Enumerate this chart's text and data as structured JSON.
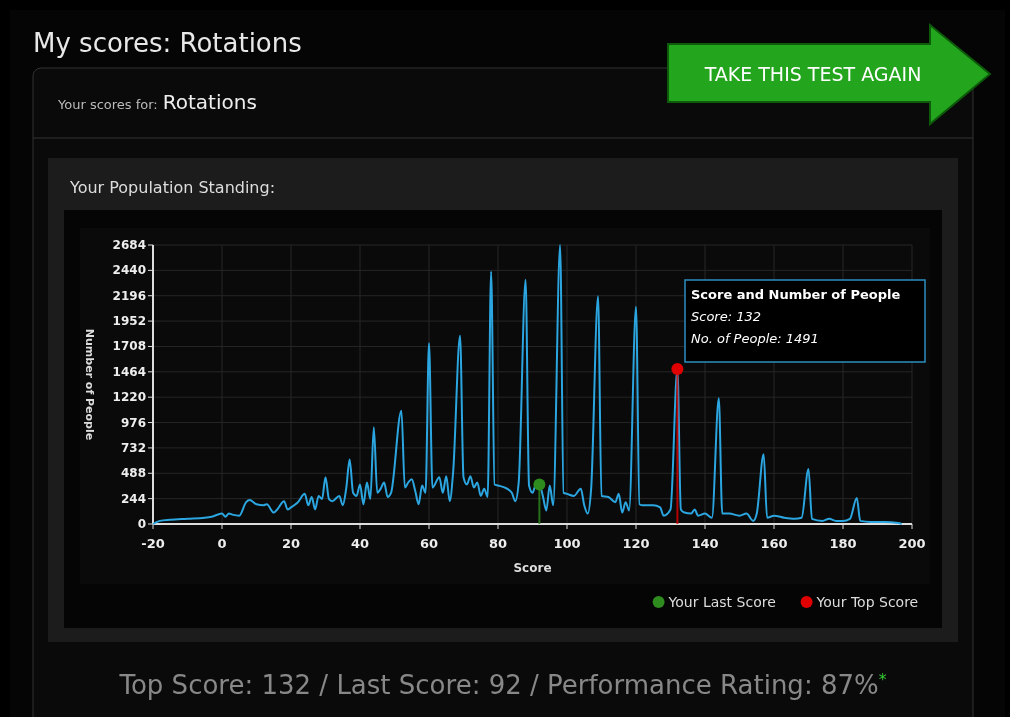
{
  "chart_data": {
    "type": "line",
    "title": "My scores: Rotations",
    "subtitle": "Your scores for: Rotations",
    "xlabel": "Score",
    "ylabel": "Number of People",
    "xlim": [
      -20,
      200
    ],
    "xticks": [
      -20,
      0,
      20,
      40,
      60,
      80,
      100,
      120,
      140,
      160,
      180,
      200
    ],
    "ylim": [
      0,
      2684
    ],
    "yticks": [
      0,
      244,
      488,
      732,
      976,
      1220,
      1464,
      1708,
      1952,
      2196,
      2440,
      2684
    ],
    "grid": true,
    "legend": "bottom right",
    "line_style": "solid",
    "annotations": [
      "Your Population Standing:",
      "TAKE THIS TEST AGAIN",
      "Score and Number of People",
      "Score: 132",
      "No. of People: 1491",
      "Top Score: 132 / Last Score: 92 / Performance Rating: 87%$^{*}$"
    ],
    "series": [
      {
        "color": "#2ba6e0",
        "marker": "none",
        "x": [
          -20,
          -18,
          -15,
          -10,
          -5,
          -3,
          0,
          1,
          2,
          3,
          5,
          7,
          8,
          10,
          12,
          13,
          15,
          16,
          18,
          19,
          20,
          22,
          24,
          25,
          26,
          27,
          28,
          29,
          30,
          31,
          32,
          34,
          35,
          36,
          37,
          38,
          39,
          40,
          41,
          42,
          43,
          44,
          45,
          46,
          47,
          48,
          49,
          52,
          53,
          54,
          55,
          56,
          57,
          58,
          59,
          60,
          61,
          63,
          64,
          65,
          66,
          67,
          69,
          70,
          71,
          72,
          73,
          74,
          75,
          76,
          77,
          78,
          79,
          80,
          82,
          84,
          85,
          86,
          88,
          89,
          90,
          91,
          92,
          93,
          94,
          95,
          96,
          98,
          99,
          100,
          102,
          104,
          105,
          106,
          107,
          109,
          110,
          112,
          114,
          115,
          116,
          117,
          118,
          120,
          121,
          122,
          123,
          125,
          127,
          128,
          130,
          132,
          133,
          134,
          136,
          137,
          138,
          140,
          142,
          144,
          145,
          147,
          150,
          152,
          154,
          155,
          157,
          158,
          160,
          163,
          166,
          168,
          170,
          171,
          174,
          176,
          178,
          180,
          182,
          184,
          185,
          188,
          192,
          196,
          197
        ],
        "values": [
          0,
          30,
          40,
          50,
          60,
          70,
          100,
          70,
          100,
          90,
          80,
          210,
          230,
          190,
          180,
          190,
          110,
          140,
          220,
          140,
          160,
          210,
          290,
          180,
          260,
          140,
          270,
          240,
          450,
          240,
          220,
          270,
          180,
          340,
          620,
          300,
          270,
          380,
          190,
          400,
          240,
          930,
          300,
          340,
          400,
          260,
          300,
          1090,
          350,
          400,
          430,
          320,
          190,
          370,
          300,
          1740,
          350,
          450,
          300,
          460,
          220,
          500,
          1810,
          450,
          380,
          460,
          350,
          400,
          270,
          340,
          260,
          2430,
          380,
          370,
          350,
          300,
          220,
          400,
          2350,
          370,
          300,
          380,
          380,
          270,
          130,
          370,
          180,
          2684,
          300,
          290,
          270,
          340,
          180,
          100,
          340,
          2190,
          270,
          260,
          210,
          290,
          110,
          210,
          130,
          2090,
          190,
          180,
          180,
          180,
          160,
          80,
          140,
          1491,
          140,
          110,
          100,
          140,
          80,
          100,
          60,
          1210,
          100,
          100,
          80,
          100,
          30,
          100,
          670,
          60,
          80,
          60,
          50,
          60,
          530,
          50,
          30,
          50,
          30,
          30,
          50,
          250,
          30,
          20,
          20,
          10,
          0
        ]
      },
      {
        "type": "lollipop",
        "name": "Your Last Score",
        "color": "#2e8b1e",
        "marker": "circle",
        "x": [
          92
        ],
        "values": [
          380
        ]
      },
      {
        "type": "lollipop",
        "name": "Your Top Score",
        "color": "#e00000",
        "marker": "circle",
        "x": [
          132
        ],
        "values": [
          1491
        ]
      }
    ]
  }
}
